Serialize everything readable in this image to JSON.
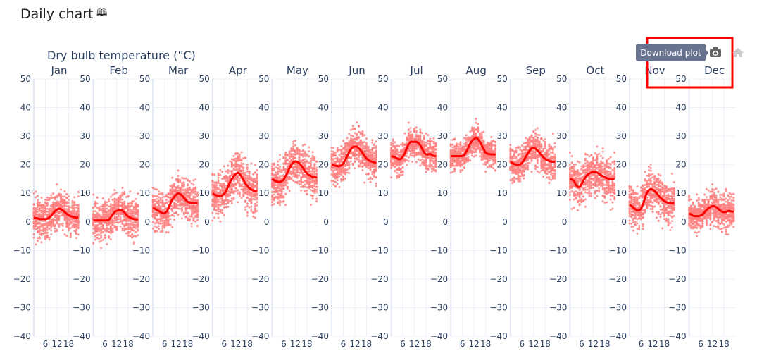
{
  "header": {
    "title": "Daily chart",
    "book_icon": "book-icon"
  },
  "modebar": {
    "camera_icon": "camera-icon",
    "home_icon": "home-icon",
    "tooltip": "Download plot",
    "highlight_color": "#ff0000"
  },
  "chart_data": {
    "type": "scatter",
    "title": "Dry bulb temperature (°C)",
    "panels": [
      "Jan",
      "Feb",
      "Mar",
      "Apr",
      "May",
      "Jun",
      "Jul",
      "Aug",
      "Sep",
      "Oct",
      "Nov",
      "Dec"
    ],
    "ylim": [
      -40,
      50
    ],
    "yticks": [
      50,
      40,
      30,
      20,
      10,
      0,
      -10,
      -20,
      -30,
      -40
    ],
    "xlim": [
      0,
      24
    ],
    "xticks": [
      6,
      12,
      18
    ],
    "grid": true,
    "point_color": "#ff7f7f",
    "line_color": "#ff0000",
    "hourly_mean": [
      [
        1.5,
        1.4,
        1.2,
        1.0,
        1.0,
        1.0,
        1.0,
        1.1,
        1.5,
        2.2,
        3.0,
        3.8,
        4.3,
        4.6,
        4.5,
        4.0,
        3.4,
        2.8,
        2.3,
        2.0,
        1.8,
        1.6,
        1.5,
        1.5
      ],
      [
        0.6,
        0.5,
        0.5,
        0.5,
        0.5,
        0.5,
        0.5,
        0.5,
        0.8,
        1.6,
        2.6,
        3.5,
        3.9,
        4.0,
        4.1,
        3.9,
        3.3,
        2.5,
        1.9,
        1.5,
        1.2,
        1.0,
        0.9,
        0.8
      ],
      [
        5.0,
        4.6,
        4.2,
        3.8,
        3.4,
        3.0,
        3.0,
        3.5,
        4.8,
        6.4,
        7.8,
        8.8,
        9.5,
        10.0,
        9.8,
        9.2,
        8.4,
        7.6,
        7.0,
        6.8,
        6.6,
        6.5,
        6.5,
        6.5
      ],
      [
        10.0,
        9.6,
        9.2,
        9.0,
        9.0,
        9.2,
        9.8,
        10.8,
        12.2,
        13.8,
        15.0,
        16.0,
        16.8,
        17.2,
        16.8,
        15.8,
        14.6,
        13.4,
        12.5,
        11.8,
        11.3,
        11.0,
        10.8,
        10.7
      ],
      [
        15.0,
        14.6,
        14.2,
        14.0,
        14.0,
        14.2,
        14.8,
        16.0,
        17.4,
        18.8,
        20.0,
        20.8,
        21.2,
        21.0,
        20.5,
        19.8,
        18.8,
        17.8,
        17.0,
        16.4,
        16.0,
        15.8,
        15.7,
        15.6
      ],
      [
        20.0,
        19.8,
        19.6,
        19.5,
        19.5,
        19.8,
        20.4,
        21.6,
        23.0,
        24.4,
        25.5,
        26.2,
        26.4,
        26.3,
        25.8,
        25.0,
        24.0,
        23.0,
        22.2,
        21.6,
        21.2,
        21.0,
        20.8,
        20.7
      ],
      [
        23.0,
        22.8,
        22.6,
        22.2,
        21.8,
        22.0,
        22.8,
        24.0,
        25.8,
        27.2,
        28.0,
        28.0,
        28.0,
        28.0,
        27.6,
        26.8,
        25.6,
        24.2,
        23.6,
        23.6,
        23.8,
        23.4,
        23.0,
        23.0
      ],
      [
        23.0,
        23.0,
        23.0,
        23.0,
        23.0,
        23.0,
        23.0,
        23.4,
        24.6,
        26.0,
        27.4,
        28.4,
        29.0,
        29.5,
        29.0,
        28.0,
        26.8,
        25.4,
        24.2,
        23.8,
        23.7,
        23.6,
        23.6,
        23.5
      ],
      [
        21.0,
        20.6,
        20.2,
        20.0,
        20.0,
        20.0,
        20.6,
        21.6,
        22.8,
        24.0,
        25.0,
        25.8,
        26.0,
        25.6,
        25.0,
        24.2,
        23.4,
        22.6,
        22.0,
        21.6,
        21.3,
        21.1,
        21.0,
        21.0
      ],
      [
        15.0,
        14.8,
        14.4,
        13.0,
        12.2,
        12.2,
        13.2,
        14.6,
        15.6,
        16.4,
        16.9,
        17.3,
        17.5,
        17.5,
        17.2,
        16.8,
        16.4,
        16.0,
        15.6,
        15.3,
        15.1,
        15.0,
        15.0,
        15.0
      ],
      [
        6.0,
        5.6,
        5.0,
        4.4,
        4.0,
        4.0,
        4.6,
        6.2,
        8.4,
        10.2,
        11.2,
        11.5,
        11.3,
        10.8,
        10.0,
        9.2,
        8.4,
        7.8,
        7.2,
        6.9,
        6.7,
        6.6,
        6.5,
        6.5
      ],
      [
        3.0,
        2.6,
        2.2,
        2.0,
        2.0,
        2.0,
        2.2,
        2.6,
        3.4,
        4.2,
        4.8,
        5.2,
        5.5,
        5.5,
        5.2,
        4.6,
        4.0,
        3.6,
        3.4,
        3.5,
        3.8,
        3.8,
        3.6,
        3.5
      ]
    ],
    "spread": [
      4.5,
      5.0,
      5.0,
      5.5,
      5.5,
      4.5,
      4.0,
      3.5,
      4.5,
      5.5,
      5.0,
      4.0
    ]
  }
}
